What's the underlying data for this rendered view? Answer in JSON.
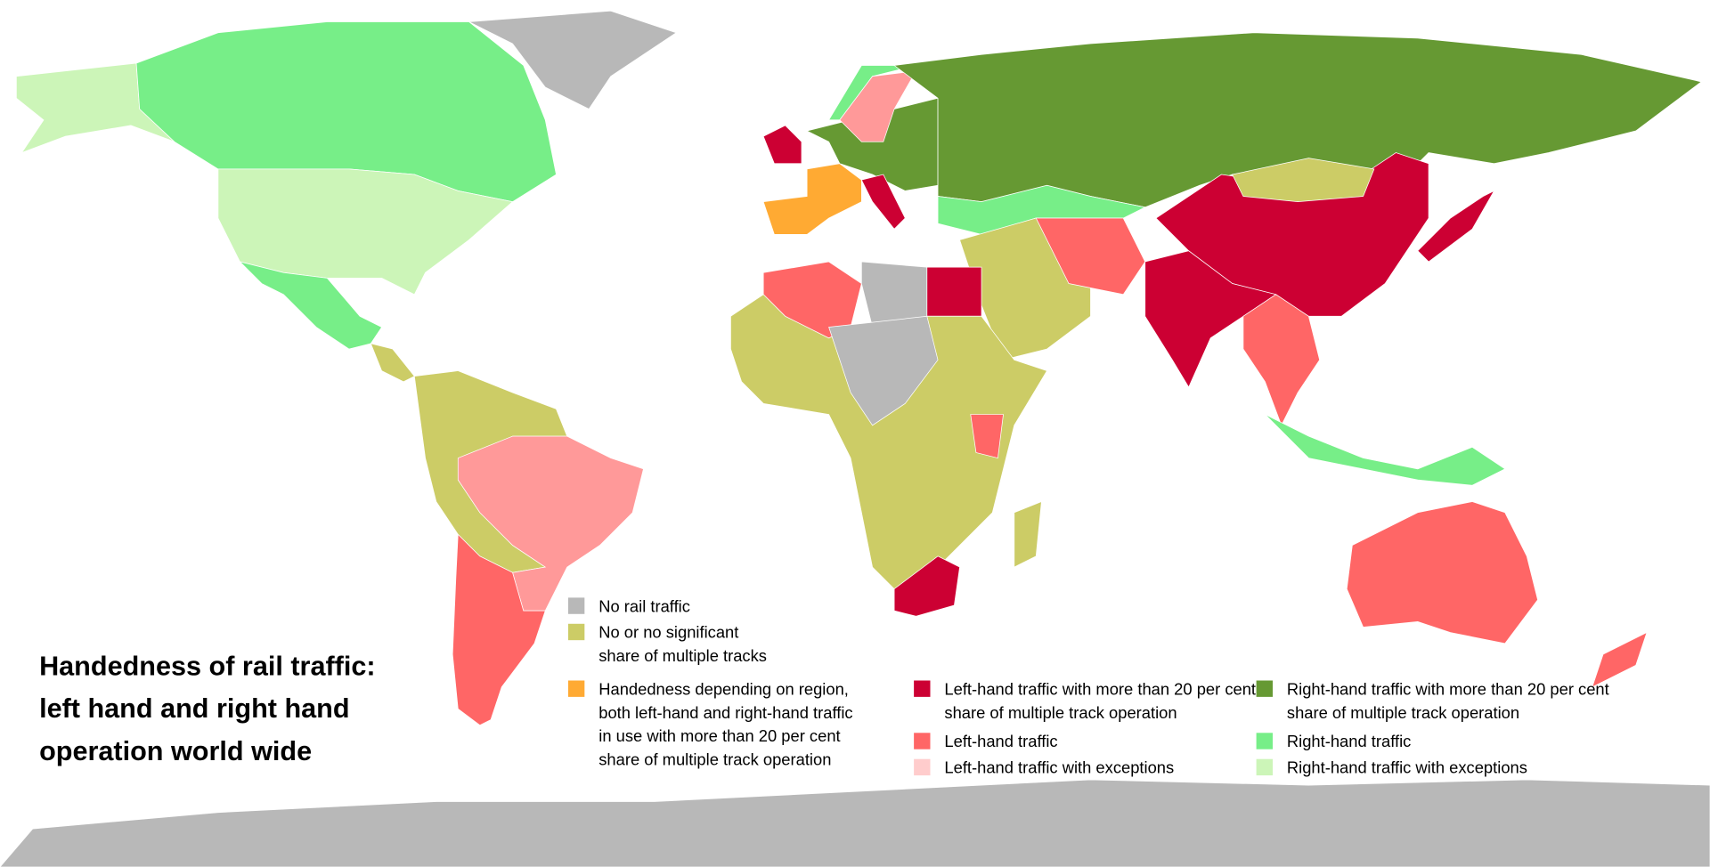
{
  "title": [
    "Handedness of rail traffic:",
    "left hand and right hand",
    "operation world wide"
  ],
  "legend": {
    "items": [
      {
        "color": "#b8b8b8",
        "label": [
          "No rail traffic"
        ]
      },
      {
        "color": "#cccc66",
        "label": [
          "No or no significant",
          "share of multiple tracks"
        ]
      },
      {
        "color": "#ffaa33",
        "label": [
          "Handedness depending on region,",
          "both left-hand and right-hand traffic",
          "in use with more than 20 per cent",
          "share of multiple track operation"
        ]
      },
      {
        "color": "#cc0033",
        "label": [
          "Left-hand traffic with more than 20 per cent",
          "share of multiple track operation"
        ]
      },
      {
        "color": "#ff6666",
        "label": [
          "Left-hand traffic"
        ]
      },
      {
        "color": "#ffcccc",
        "label": [
          "Left-hand traffic with exceptions"
        ]
      },
      {
        "color": "#669933",
        "label": [
          "Right-hand traffic with more than 20 per cent",
          "share of multiple track operation"
        ]
      },
      {
        "color": "#77ee88",
        "label": [
          "Right-hand traffic"
        ]
      },
      {
        "color": "#ccf5b8",
        "label": [
          "Right-hand traffic with exceptions"
        ]
      }
    ]
  }
}
